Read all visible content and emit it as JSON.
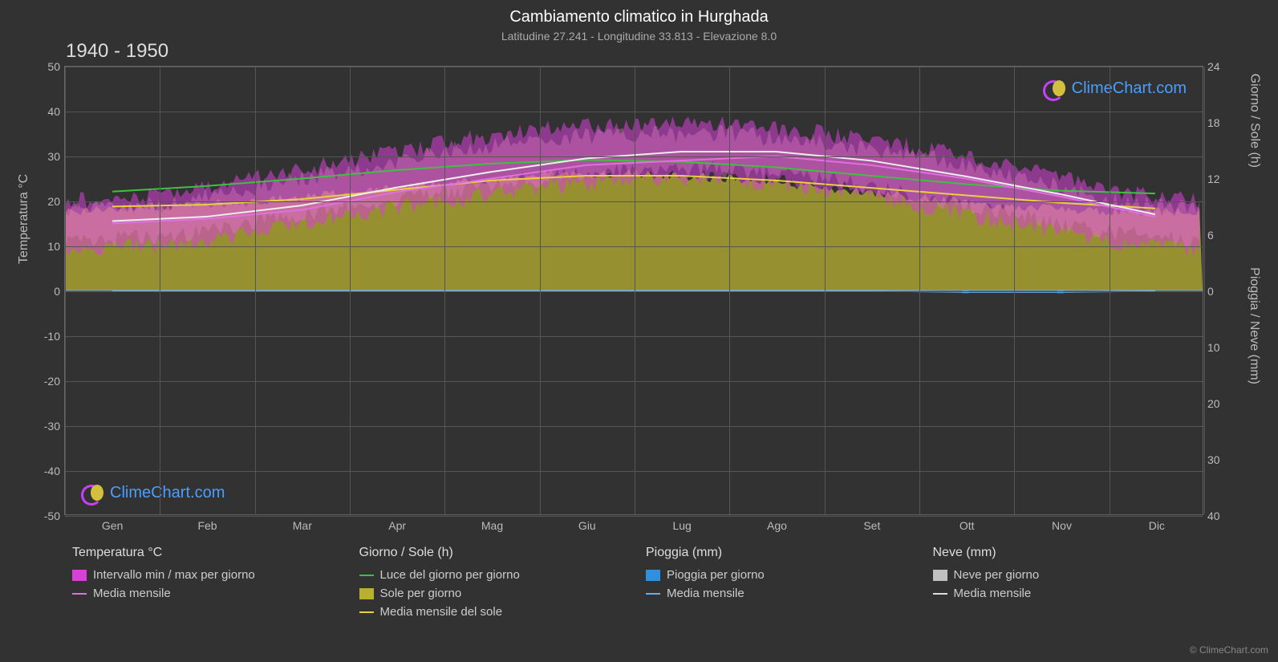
{
  "title": "Cambiamento climatico in Hurghada",
  "subtitle": "Latitudine 27.241 - Longitudine 33.813 - Elevazione 8.0",
  "period": "1940 - 1950",
  "copyright": "© ClimeChart.com",
  "watermark_text": "ClimeChart.com",
  "axes": {
    "left_label": "Temperatura °C",
    "right_top_label": "Giorno / Sole (h)",
    "right_bottom_label": "Pioggia / Neve (mm)",
    "left_ticks": [
      -50,
      -40,
      -30,
      -20,
      -10,
      0,
      10,
      20,
      30,
      40,
      50
    ],
    "left_min": -50,
    "left_max": 50,
    "right_top_ticks": [
      0,
      6,
      12,
      18,
      24
    ],
    "right_top_min": 0,
    "right_top_max": 24,
    "right_bottom_ticks": [
      0,
      10,
      20,
      30,
      40
    ],
    "right_bottom_min": 0,
    "right_bottom_max": 40,
    "months": [
      "Gen",
      "Feb",
      "Mar",
      "Apr",
      "Mag",
      "Giu",
      "Lug",
      "Ago",
      "Set",
      "Ott",
      "Nov",
      "Dic"
    ]
  },
  "colors": {
    "background": "#323232",
    "grid": "#555555",
    "text": "#cccccc",
    "magenta_fill": "#d840d8",
    "magenta_fill_light": "#e880c8",
    "white_line": "#eeeeee",
    "violet_line": "#e070e0",
    "green_line": "#40c040",
    "olive_fill": "#b8b030",
    "yellow_line": "#e8d040",
    "blue_fill": "#3090e0",
    "blue_line": "#60b0f0",
    "grey_fill": "#c0c0c0",
    "grey_line": "#dddddd"
  },
  "chart": {
    "temp_band_max": [
      20,
      21,
      25,
      29,
      33,
      36,
      37,
      37,
      35,
      32,
      28,
      22
    ],
    "temp_band_min": [
      9,
      10,
      13,
      17,
      20,
      23,
      25,
      25,
      23,
      19,
      15,
      11
    ],
    "temp_mean_monthly": [
      15.5,
      16.5,
      19,
      23,
      26.5,
      29.5,
      31,
      31,
      29,
      25.5,
      21.5,
      17
    ],
    "temp_mean_line": [
      15,
      16,
      18,
      22,
      25,
      28,
      29,
      30,
      28,
      25,
      21,
      16.5
    ],
    "daylight_hours": [
      10.6,
      11.2,
      12,
      12.9,
      13.6,
      14,
      13.8,
      13.2,
      12.3,
      11.4,
      10.7,
      10.4
    ],
    "sun_hours": [
      8.5,
      9,
      9.5,
      10.5,
      11.5,
      12.5,
      12.5,
      12,
      11,
      10,
      9,
      8.5
    ],
    "sun_mean_monthly": [
      9,
      9.2,
      9.8,
      10.8,
      11.8,
      12.3,
      12.3,
      11.8,
      11,
      10.2,
      9.4,
      8.8
    ],
    "rain_daily": [
      0,
      0,
      0,
      0,
      0,
      0,
      0,
      0,
      0,
      0.5,
      0.5,
      0
    ],
    "rain_mean": [
      0.1,
      0.1,
      0.1,
      0.1,
      0.1,
      0.1,
      0.1,
      0.1,
      0.1,
      0.3,
      0.3,
      0.1
    ]
  },
  "legend": {
    "col1_title": "Temperatura °C",
    "col1_items": [
      {
        "swatch": "box",
        "color": "#d840d8",
        "label": "Intervallo min / max per giorno"
      },
      {
        "swatch": "line",
        "color": "#e070e0",
        "label": "Media mensile"
      }
    ],
    "col2_title": "Giorno / Sole (h)",
    "col2_items": [
      {
        "swatch": "line",
        "color": "#40c040",
        "label": "Luce del giorno per giorno"
      },
      {
        "swatch": "box",
        "color": "#b8b030",
        "label": "Sole per giorno"
      },
      {
        "swatch": "line",
        "color": "#e8d040",
        "label": "Media mensile del sole"
      }
    ],
    "col3_title": "Pioggia (mm)",
    "col3_items": [
      {
        "swatch": "box",
        "color": "#3090e0",
        "label": "Pioggia per giorno"
      },
      {
        "swatch": "line",
        "color": "#60b0f0",
        "label": "Media mensile"
      }
    ],
    "col4_title": "Neve (mm)",
    "col4_items": [
      {
        "swatch": "box",
        "color": "#c0c0c0",
        "label": "Neve per giorno"
      },
      {
        "swatch": "line",
        "color": "#dddddd",
        "label": "Media mensile"
      }
    ]
  }
}
